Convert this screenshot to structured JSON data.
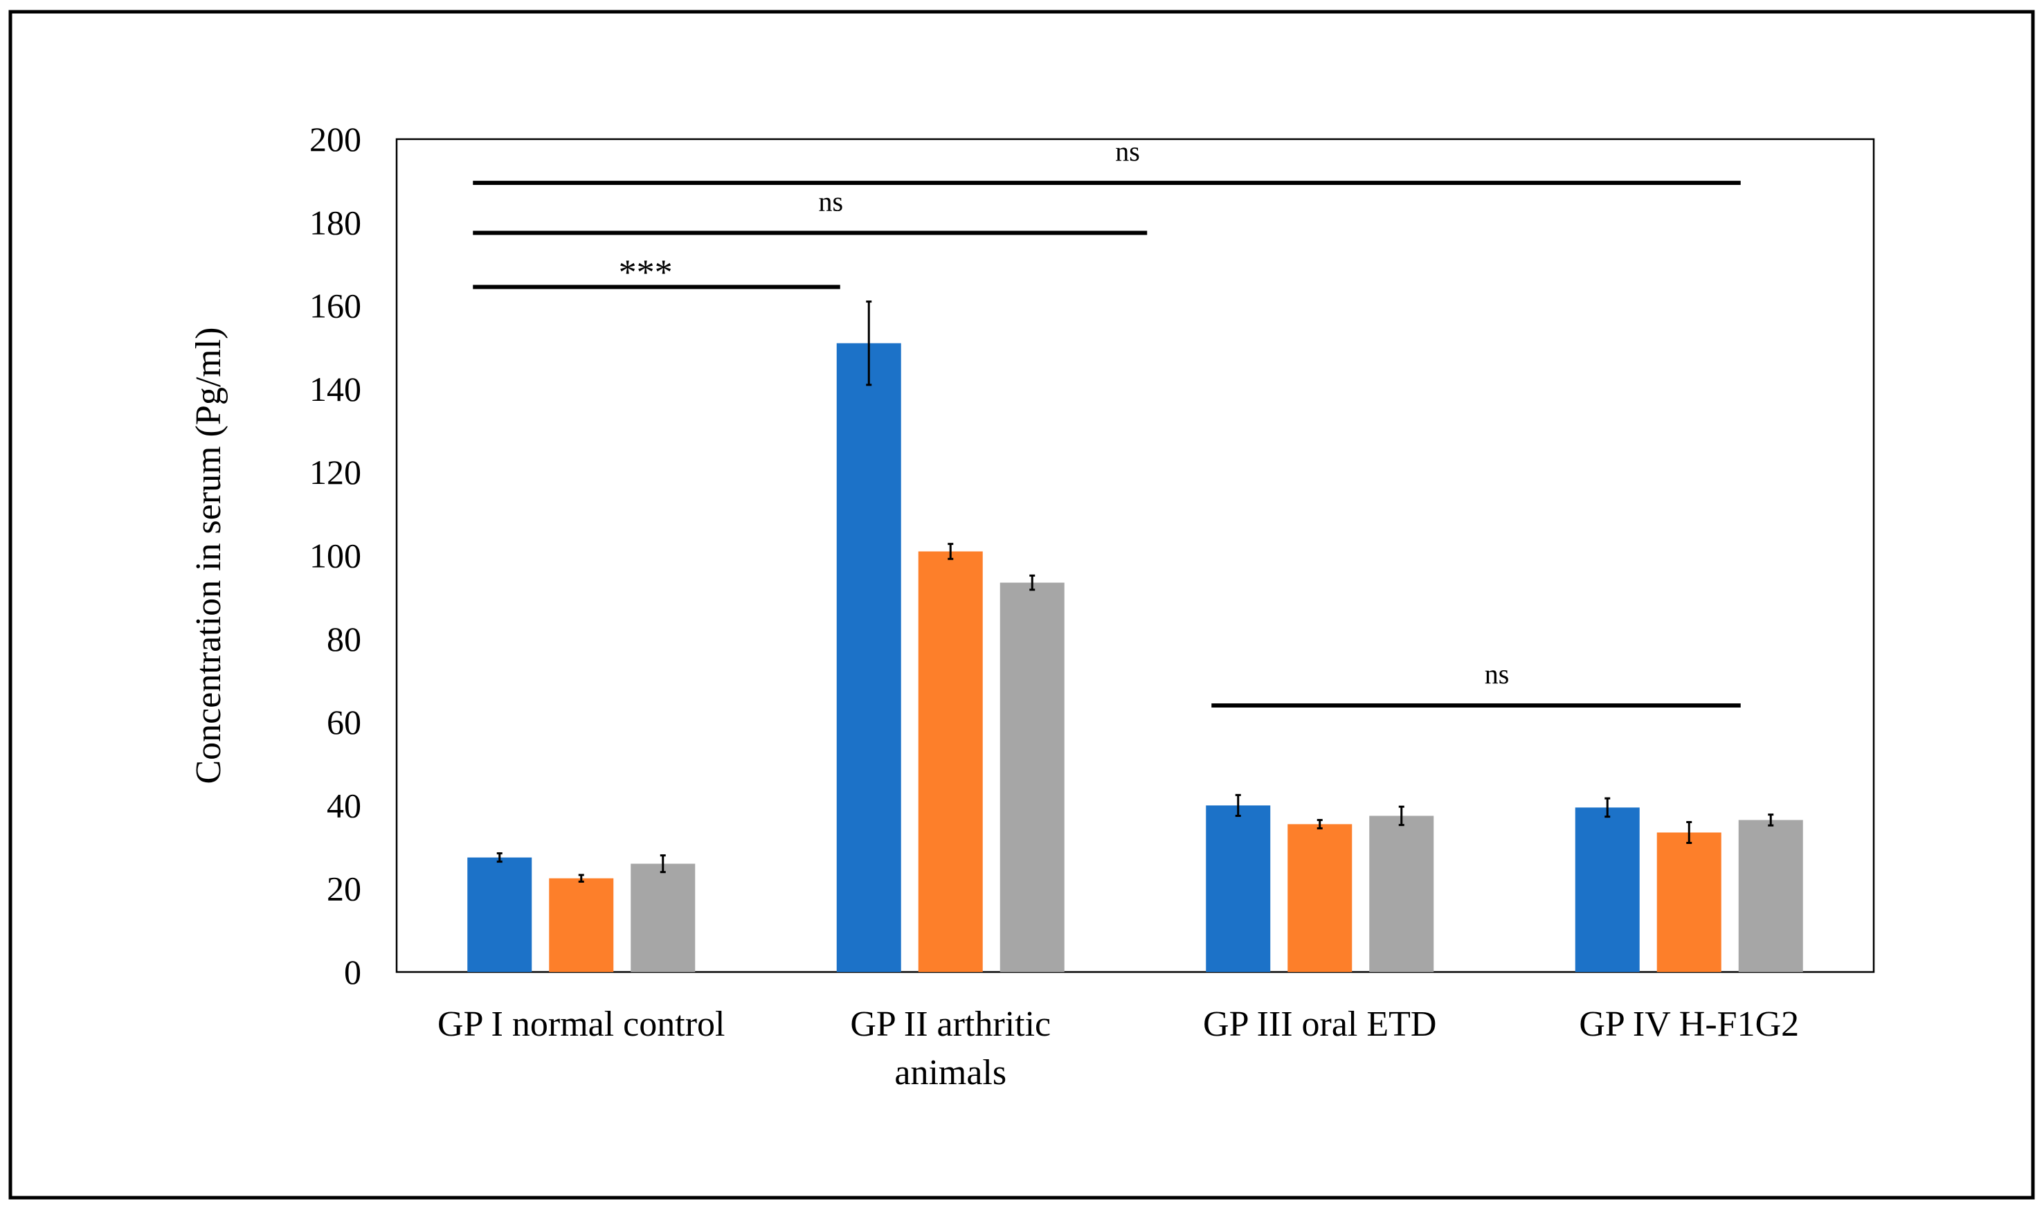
{
  "chart_data": {
    "type": "bar",
    "title": "",
    "xlabel": "",
    "ylabel": "Concentration in serum (Pg/ml)",
    "ylim": [
      0,
      200
    ],
    "yticks": [
      0,
      20,
      40,
      60,
      80,
      100,
      120,
      140,
      160,
      180,
      200
    ],
    "grid": false,
    "legend": "none",
    "categories": [
      [
        "GP I normal control"
      ],
      [
        "GP II arthritic",
        "animals"
      ],
      [
        "GP III oral ETD"
      ],
      [
        "GP IV H-F1G2"
      ]
    ],
    "series": [
      {
        "color": "#1C72C8",
        "values": [
          27.5,
          151,
          40,
          39.5
        ],
        "errors": [
          1,
          10,
          2.5,
          2.2
        ]
      },
      {
        "color": "#FD7F2A",
        "values": [
          22.5,
          101,
          35.5,
          33.5
        ],
        "errors": [
          0.8,
          1.8,
          1,
          2.5
        ]
      },
      {
        "color": "#A6A6A6",
        "values": [
          26,
          93.5,
          37.5,
          36.5
        ],
        "errors": [
          2,
          1.7,
          2.2,
          1.3
        ]
      }
    ],
    "annotations": [
      {
        "from_category": 0,
        "to_category": 1,
        "y": 164.5,
        "label": "***"
      },
      {
        "from_category": 0,
        "to_category": 2,
        "y": 177.5,
        "label": "ns"
      },
      {
        "from_category": 0,
        "to_category": 3,
        "y": 189.5,
        "label": "ns"
      },
      {
        "from_category": 2,
        "to_category": 3,
        "y": 64,
        "label": "ns"
      }
    ]
  }
}
